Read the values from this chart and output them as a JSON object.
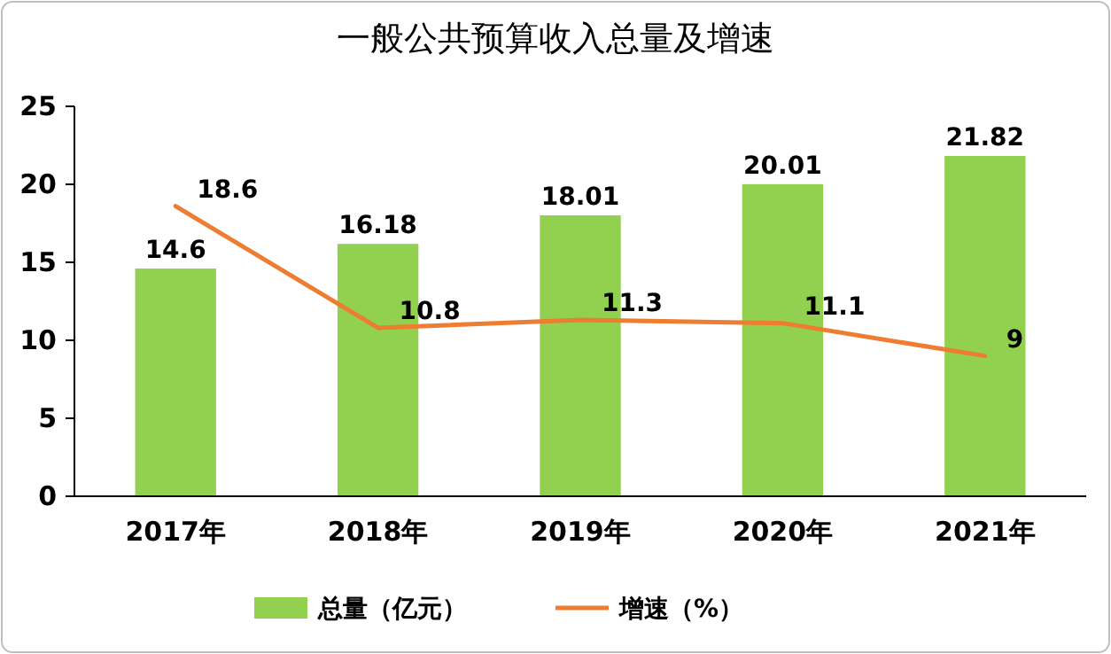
{
  "chart_data": {
    "type": "bar",
    "title": "一般公共预算收入总量及增速",
    "categories": [
      "2017年",
      "2018年",
      "2019年",
      "2020年",
      "2021年"
    ],
    "series": [
      {
        "name": "总量（亿元）",
        "color": "#92d050",
        "values": [
          14.6,
          16.18,
          18.01,
          20.01,
          21.82
        ]
      },
      {
        "name": "增速（%）",
        "type": "line",
        "color": "#ed7d31",
        "values": [
          18.6,
          10.8,
          11.3,
          11.1,
          9
        ]
      }
    ],
    "ylim": [
      0,
      25
    ],
    "yticks": [
      0,
      5,
      10,
      15,
      20,
      25
    ],
    "data_labels": true,
    "legend": "bottom",
    "grid": false,
    "marker": "none",
    "line_style": "solid"
  }
}
